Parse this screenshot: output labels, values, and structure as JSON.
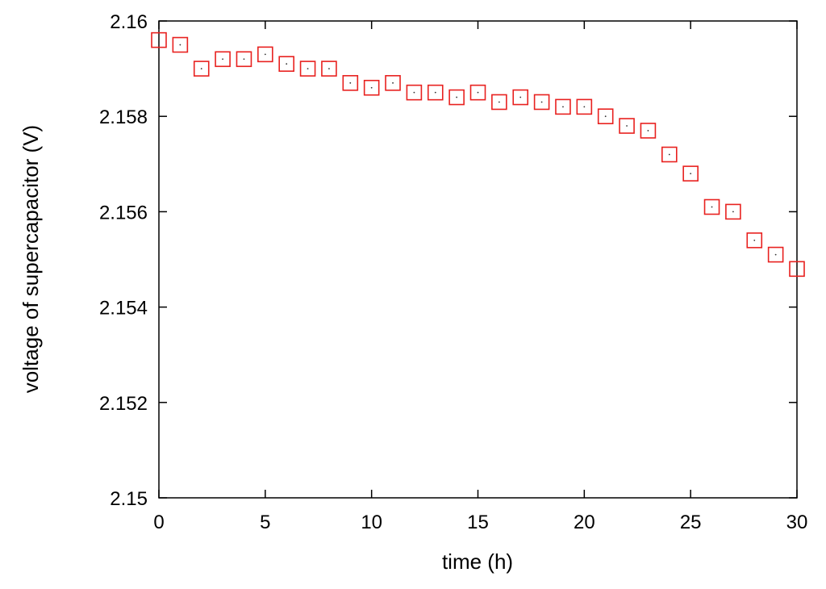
{
  "chart_data": {
    "type": "scatter",
    "title": "",
    "xlabel": "time (h)",
    "ylabel": "voltage of supercapacitor (V)",
    "xlim": [
      0,
      30
    ],
    "ylim": [
      2.15,
      2.16
    ],
    "x_ticks": [
      0,
      5,
      10,
      15,
      20,
      25,
      30
    ],
    "y_ticks": [
      2.15,
      2.152,
      2.154,
      2.156,
      2.158,
      2.16
    ],
    "x_tick_labels": [
      "0",
      "5",
      "10",
      "15",
      "20",
      "25",
      "30"
    ],
    "y_tick_labels": [
      "2.15",
      "2.152",
      "2.154",
      "2.156",
      "2.158",
      "2.16"
    ],
    "grid": false,
    "legend": "none",
    "marker": "open square",
    "marker_color": "#e8211f",
    "series": [
      {
        "x": [
          0,
          1,
          2,
          3,
          4,
          5,
          6,
          7,
          8,
          9,
          10,
          11,
          12,
          13,
          14,
          15,
          16,
          17,
          18,
          19,
          20,
          21,
          22,
          23,
          24,
          25,
          26,
          27,
          28,
          29,
          30
        ],
        "values": [
          2.1596,
          2.1595,
          2.159,
          2.1592,
          2.1592,
          2.1593,
          2.1591,
          2.159,
          2.159,
          2.1587,
          2.1586,
          2.1587,
          2.1585,
          2.1585,
          2.1584,
          2.1585,
          2.1583,
          2.1584,
          2.1583,
          2.1582,
          2.1582,
          2.158,
          2.1578,
          2.1577,
          2.1572,
          2.1568,
          2.1561,
          2.156,
          2.1554,
          2.1551,
          2.1548
        ]
      }
    ]
  }
}
